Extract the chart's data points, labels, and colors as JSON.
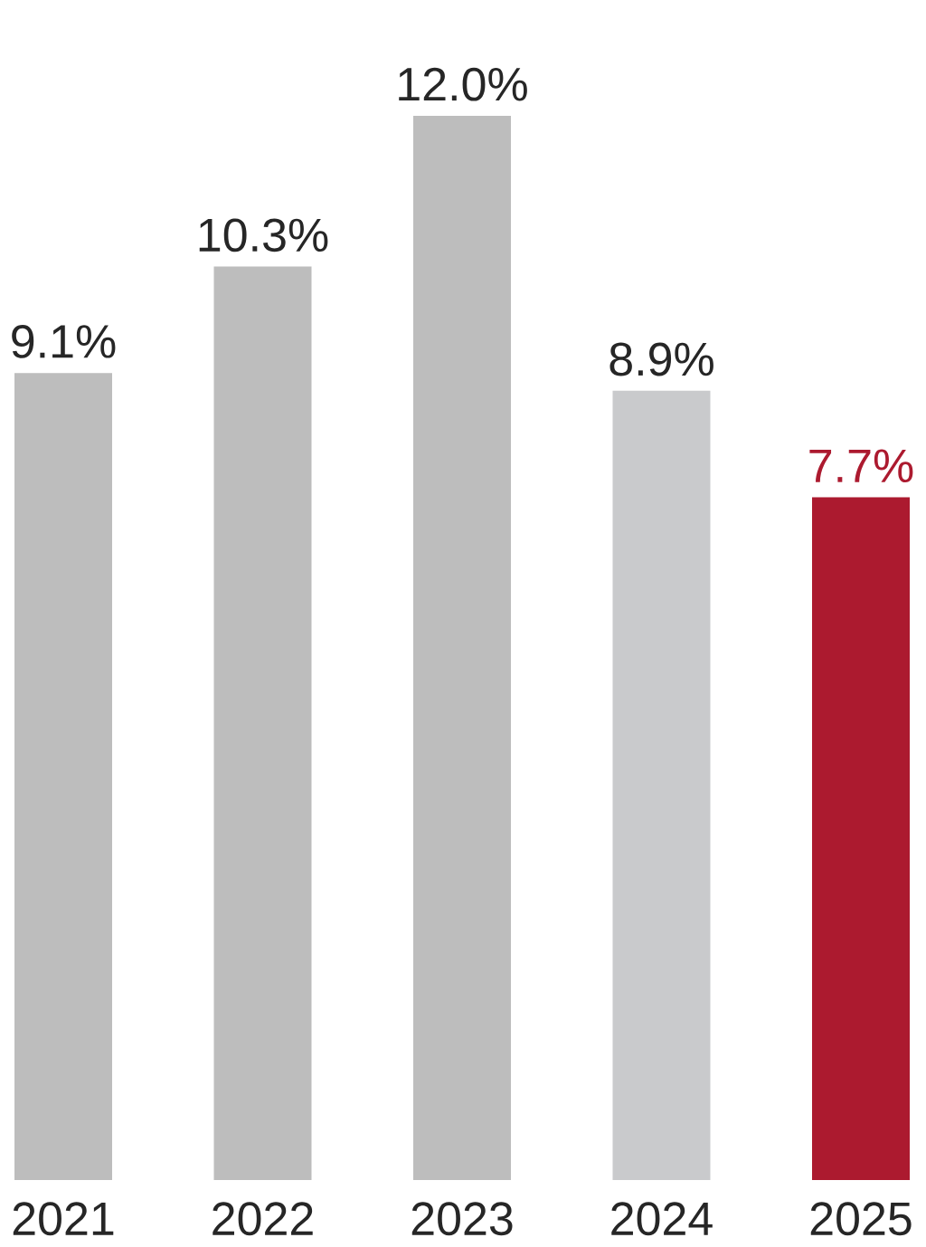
{
  "chart_data": {
    "type": "bar",
    "categories": [
      "2021",
      "2022",
      "2023",
      "2024",
      "2025"
    ],
    "values": [
      9.1,
      10.3,
      12.0,
      8.9,
      7.7
    ],
    "colors": [
      "#bdbdbd",
      "#bdbdbd",
      "#bdbdbd",
      "#c9cacc",
      "#ac1a2f"
    ],
    "value_labels": [
      "9.1%",
      "10.3%",
      "12.0%",
      "8.9%",
      "7.7%"
    ]
  }
}
